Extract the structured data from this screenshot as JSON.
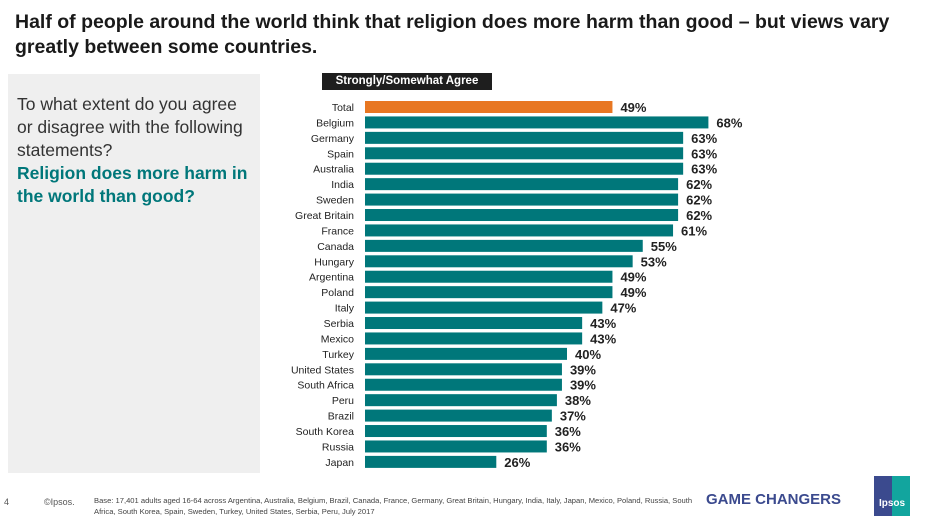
{
  "title": "Half of people around the world think that religion does more harm than good – but views vary greatly between some countries.",
  "question": {
    "prompt": "To what extent do you agree or disagree with the following statements?",
    "statement": "Religion does more harm in the world than good?"
  },
  "footer": {
    "page": "4",
    "copyright": "©Ipsos.",
    "base": "Base: 17,401 adults aged 16-64 across  Argentina, Australia, Belgium, Brazil, Canada, France, Germany, Great Britain, Hungary, India, Italy, Japan, Mexico, Poland, Russia, South Africa, South Korea, Spain, Sweden, Turkey, United States, Serbia, Peru, July 2017",
    "tagline": "GAME CHANGERS",
    "logo": "Ipsos"
  },
  "chart_data": {
    "type": "bar",
    "orientation": "horizontal",
    "legend": "Strongly/Somewhat Agree",
    "colors": {
      "total": "#e87722",
      "country": "#00777a"
    },
    "categories": [
      "Total",
      "Belgium",
      "Germany",
      "Spain",
      "Australia",
      "India",
      "Sweden",
      "Great Britain",
      "France",
      "Canada",
      "Hungary",
      "Argentina",
      "Poland",
      "Italy",
      "Serbia",
      "Mexico",
      "Turkey",
      "United States",
      "South Africa",
      "Peru",
      "Brazil",
      "South Korea",
      "Russia",
      "Japan"
    ],
    "values": [
      49,
      68,
      63,
      63,
      63,
      62,
      62,
      62,
      61,
      55,
      53,
      49,
      49,
      47,
      43,
      43,
      40,
      39,
      39,
      38,
      37,
      36,
      36,
      26
    ],
    "value_suffix": "%"
  }
}
